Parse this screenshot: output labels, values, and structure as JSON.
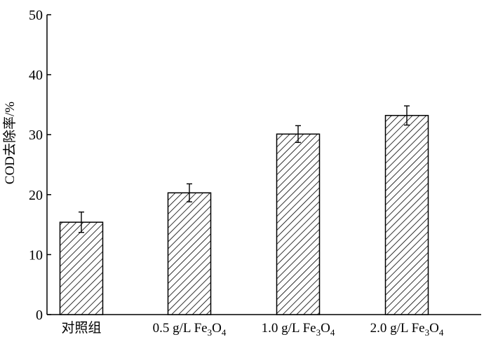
{
  "chart_data": {
    "type": "bar",
    "title": "",
    "xlabel": "",
    "ylabel": "COD去除率/%",
    "ylim": [
      0,
      50
    ],
    "yticks": [
      0,
      10,
      20,
      30,
      40,
      50
    ],
    "grid": false,
    "bar_fill": "diagonal-hatch",
    "colors": {
      "bar_fill": "#ffffff",
      "hatch": "#000000",
      "axis": "#000000"
    },
    "categories": [
      {
        "label": "对照组"
      },
      {
        "label": "0.5 g/L Fe",
        "sub1": "3",
        "mid": "O",
        "sub2": "4"
      },
      {
        "label": "1.0 g/L Fe",
        "sub1": "3",
        "mid": "O",
        "sub2": "4"
      },
      {
        "label": "2.0 g/L Fe",
        "sub1": "3",
        "mid": "O",
        "sub2": "4"
      }
    ],
    "values": [
      15.4,
      20.3,
      30.1,
      33.2
    ],
    "errors": [
      1.7,
      1.5,
      1.4,
      1.6
    ]
  }
}
